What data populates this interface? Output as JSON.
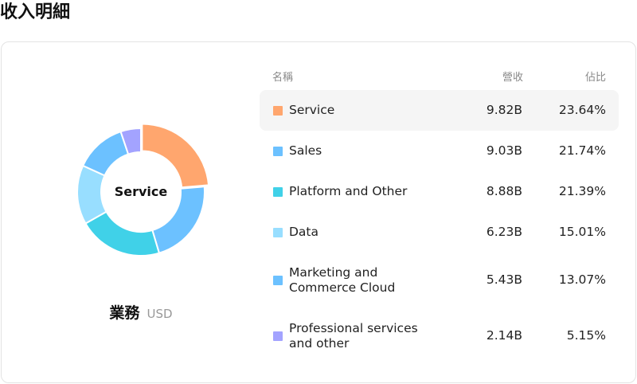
{
  "page": {
    "title": "收入明細"
  },
  "table": {
    "header_name": "名稱",
    "header_revenue": "營收",
    "header_share": "佔比"
  },
  "chart_data": {
    "type": "pie",
    "center_label": "Service",
    "caption": "業務",
    "unit": "USD",
    "segments": [
      {
        "name": "Service",
        "revenue": "9.82B",
        "share": "23.64%",
        "value": 23.64,
        "color": "#FFA66E"
      },
      {
        "name": "Sales",
        "revenue": "9.03B",
        "share": "21.74%",
        "value": 21.74,
        "color": "#6CC1FF"
      },
      {
        "name": "Platform and Other",
        "revenue": "8.88B",
        "share": "21.39%",
        "value": 21.39,
        "color": "#40D1E8"
      },
      {
        "name": "Data",
        "revenue": "6.23B",
        "share": "15.01%",
        "value": 15.01,
        "color": "#98DEFF"
      },
      {
        "name": "Marketing and Commerce Cloud",
        "revenue": "5.43B",
        "share": "13.07%",
        "value": 13.07,
        "color": "#6CC1FF"
      },
      {
        "name": "Professional services and other",
        "revenue": "2.14B",
        "share": "5.15%",
        "value": 5.15,
        "color": "#A3A3FF"
      }
    ],
    "selected_index": 0
  }
}
